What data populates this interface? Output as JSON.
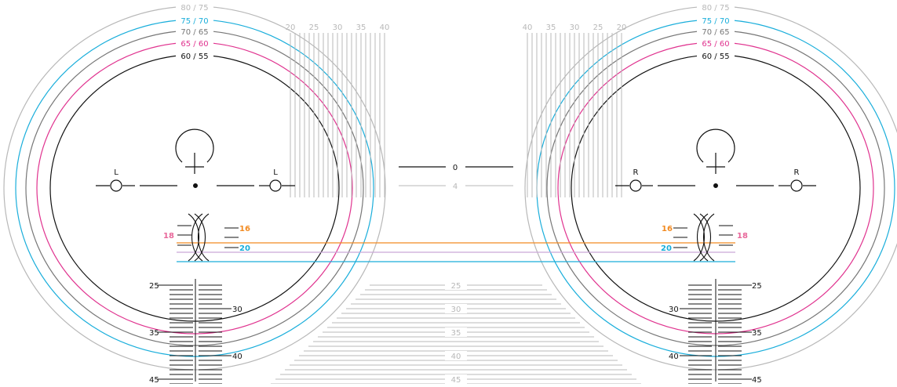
{
  "colors": {
    "black": "#111111",
    "grey": "#777777",
    "light": "#b8b8b8",
    "cyan": "#1aaedb",
    "magenta": "#e0338f",
    "orange": "#f28b22",
    "pink": "#e8679a",
    "lavender": "#c9a7d8"
  },
  "size_rings": [
    {
      "label": "80 / 75",
      "color": "light"
    },
    {
      "label": "75 / 70",
      "color": "cyan"
    },
    {
      "label": "70 / 65",
      "color": "grey"
    },
    {
      "label": "65 / 60",
      "color": "magenta"
    },
    {
      "label": "60 / 55",
      "color": "black"
    }
  ],
  "vertical_scale_labels": {
    "left": [
      "20",
      "25",
      "30",
      "35",
      "40"
    ],
    "right": [
      "40",
      "35",
      "30",
      "25",
      "20"
    ]
  },
  "center_horizontal": {
    "top": "0",
    "bottom": "4"
  },
  "side_markers": {
    "left": "L",
    "right": "R"
  },
  "bridge_labels": [
    {
      "label": "16",
      "color": "orange"
    },
    {
      "label": "18",
      "color": "pink"
    },
    {
      "label": "20",
      "color": "cyan"
    }
  ],
  "left_scale_labels": [
    "25",
    "30",
    "35",
    "40",
    "45"
  ],
  "right_scale_labels": [
    "25",
    "30",
    "35",
    "40",
    "45"
  ],
  "bottom_center_labels": [
    "25",
    "30",
    "35",
    "40",
    "45"
  ]
}
